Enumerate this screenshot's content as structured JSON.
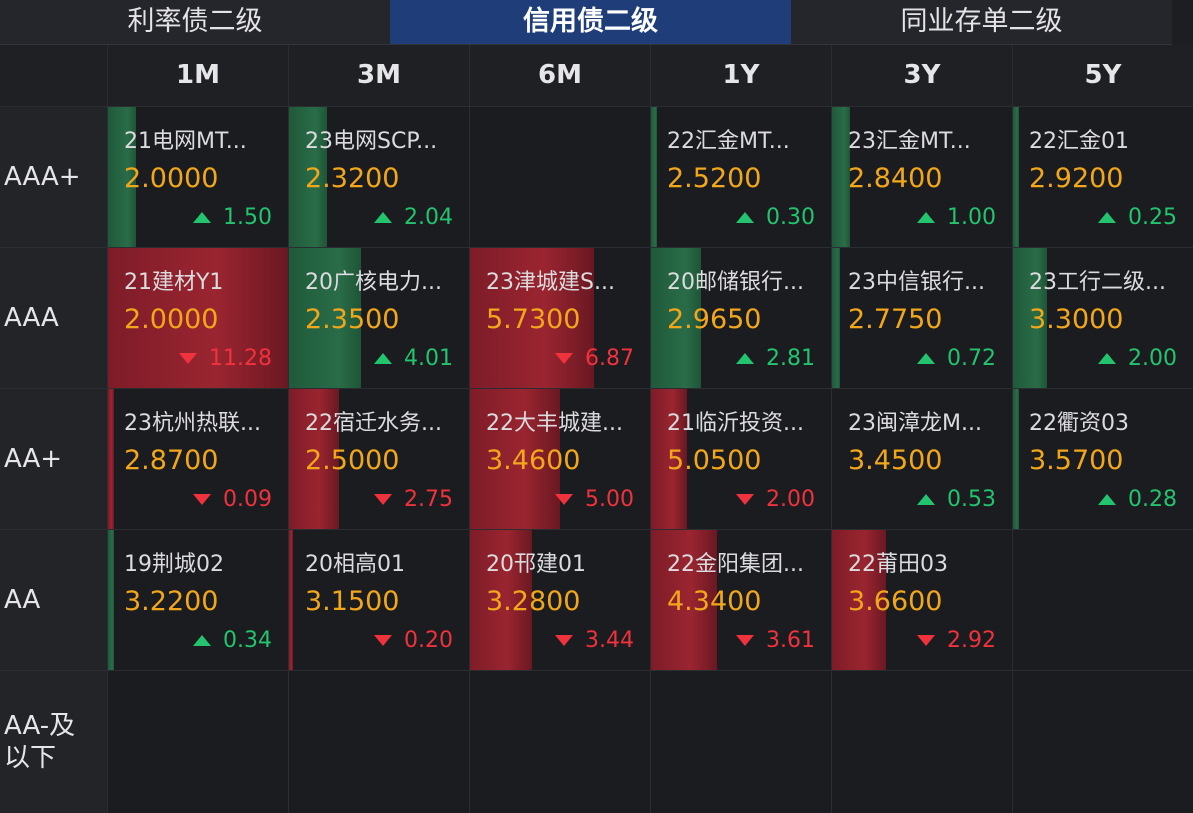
{
  "tabs": [
    {
      "label": "利率债二级",
      "active": false
    },
    {
      "label": "信用债二级",
      "active": true
    },
    {
      "label": "同业存单二级",
      "active": false
    }
  ],
  "columns": [
    "1M",
    "3M",
    "6M",
    "1Y",
    "3Y",
    "5Y"
  ],
  "rows": [
    {
      "rating": "AAA+",
      "cells": [
        {
          "name": "21电网MT...",
          "price": "2.0000",
          "dir": "up",
          "change": "1.50"
        },
        {
          "name": "23电网SCP...",
          "price": "2.3200",
          "dir": "up",
          "change": "2.04"
        },
        null,
        {
          "name": "22汇金MT...",
          "price": "2.5200",
          "dir": "up",
          "change": "0.30"
        },
        {
          "name": "23汇金MT...",
          "price": "2.8400",
          "dir": "up",
          "change": "1.00"
        },
        {
          "name": "22汇金01",
          "price": "2.9200",
          "dir": "up",
          "change": "0.25"
        }
      ]
    },
    {
      "rating": "AAA",
      "cells": [
        {
          "name": "21建材Y1",
          "price": "2.0000",
          "dir": "down",
          "change": "11.28"
        },
        {
          "name": "20广核电力...",
          "price": "2.3500",
          "dir": "up",
          "change": "4.01"
        },
        {
          "name": "23津城建S...",
          "price": "5.7300",
          "dir": "down",
          "change": "6.87"
        },
        {
          "name": "20邮储银行...",
          "price": "2.9650",
          "dir": "up",
          "change": "2.81"
        },
        {
          "name": "23中信银行...",
          "price": "2.7750",
          "dir": "up",
          "change": "0.72"
        },
        {
          "name": "23工行二级...",
          "price": "3.3000",
          "dir": "up",
          "change": "2.00"
        }
      ]
    },
    {
      "rating": "AA+",
      "cells": [
        {
          "name": "23杭州热联...",
          "price": "2.8700",
          "dir": "down",
          "change": "0.09"
        },
        {
          "name": "22宿迁水务...",
          "price": "2.5000",
          "dir": "down",
          "change": "2.75"
        },
        {
          "name": "22大丰城建...",
          "price": "3.4600",
          "dir": "down",
          "change": "5.00"
        },
        {
          "name": "21临沂投资...",
          "price": "5.0500",
          "dir": "down",
          "change": "2.00"
        },
        {
          "name": "23闽漳龙M...",
          "price": "3.4500",
          "dir": "up",
          "change": "0.53"
        },
        {
          "name": "22衢资03",
          "price": "3.5700",
          "dir": "up",
          "change": "0.28"
        }
      ]
    },
    {
      "rating": "AA",
      "cells": [
        {
          "name": "19荆城02",
          "price": "3.2200",
          "dir": "up",
          "change": "0.34"
        },
        {
          "name": "20相高01",
          "price": "3.1500",
          "dir": "down",
          "change": "0.20"
        },
        {
          "name": "20邗建01",
          "price": "3.2800",
          "dir": "down",
          "change": "3.44"
        },
        {
          "name": "22金阳集团...",
          "price": "4.3400",
          "dir": "down",
          "change": "3.61"
        },
        {
          "name": "22莆田03",
          "price": "3.6600",
          "dir": "down",
          "change": "2.92"
        },
        null
      ]
    },
    {
      "rating": "AA-及以下",
      "cells": [
        null,
        null,
        null,
        null,
        null,
        null
      ]
    }
  ],
  "colors": {
    "up": "#22c46e",
    "down": "#f0323d",
    "price": "#f2a71b",
    "active_tab": "#1f3e79"
  }
}
